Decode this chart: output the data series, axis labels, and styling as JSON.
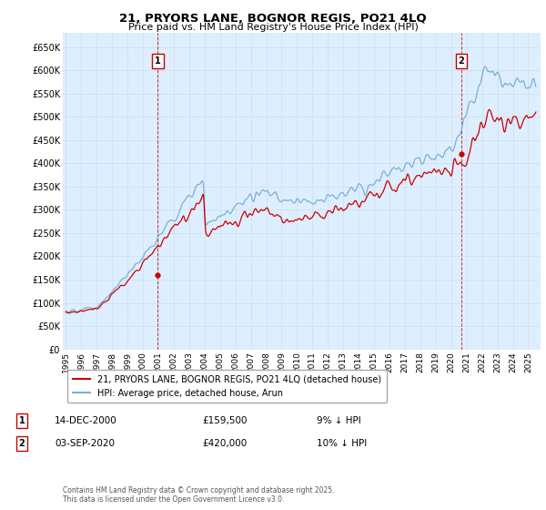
{
  "title": "21, PRYORS LANE, BOGNOR REGIS, PO21 4LQ",
  "subtitle": "Price paid vs. HM Land Registry's House Price Index (HPI)",
  "ylim": [
    0,
    680000
  ],
  "yticks": [
    0,
    50000,
    100000,
    150000,
    200000,
    250000,
    300000,
    350000,
    400000,
    450000,
    500000,
    550000,
    600000,
    650000
  ],
  "ytick_labels": [
    "£0",
    "£50K",
    "£100K",
    "£150K",
    "£200K",
    "£250K",
    "£300K",
    "£350K",
    "£400K",
    "£450K",
    "£500K",
    "£550K",
    "£600K",
    "£650K"
  ],
  "sale1_price": 159500,
  "sale1_x": 2000.96,
  "sale2_price": 420000,
  "sale2_x": 2020.67,
  "hpi_color": "#7ab0d4",
  "price_color": "#cc0000",
  "annotation_box_color": "#cc0000",
  "dashed_line_color": "#cc0000",
  "grid_color": "#ccddee",
  "chart_bg": "#ddeeff",
  "background_color": "#ffffff",
  "legend_label_price": "21, PRYORS LANE, BOGNOR REGIS, PO21 4LQ (detached house)",
  "legend_label_hpi": "HPI: Average price, detached house, Arun",
  "note1_label": "1",
  "note1_date": "14-DEC-2000",
  "note1_price": "£159,500",
  "note1_pct": "9% ↓ HPI",
  "note2_label": "2",
  "note2_date": "03-SEP-2020",
  "note2_price": "£420,000",
  "note2_pct": "10% ↓ HPI",
  "footer": "Contains HM Land Registry data © Crown copyright and database right 2025.\nThis data is licensed under the Open Government Licence v3.0.",
  "xmin": 1994.8,
  "xmax": 2025.8
}
